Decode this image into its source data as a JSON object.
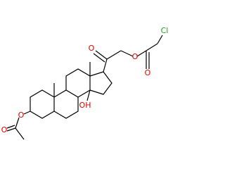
{
  "atoms": {
    "ketone_o": "O",
    "ester_o": "O",
    "carbonyl_o": "O",
    "chlorine": "Cl",
    "hydroxyl": "OH",
    "acetate_o": "O",
    "acetate_carbonyl_o": "O"
  }
}
